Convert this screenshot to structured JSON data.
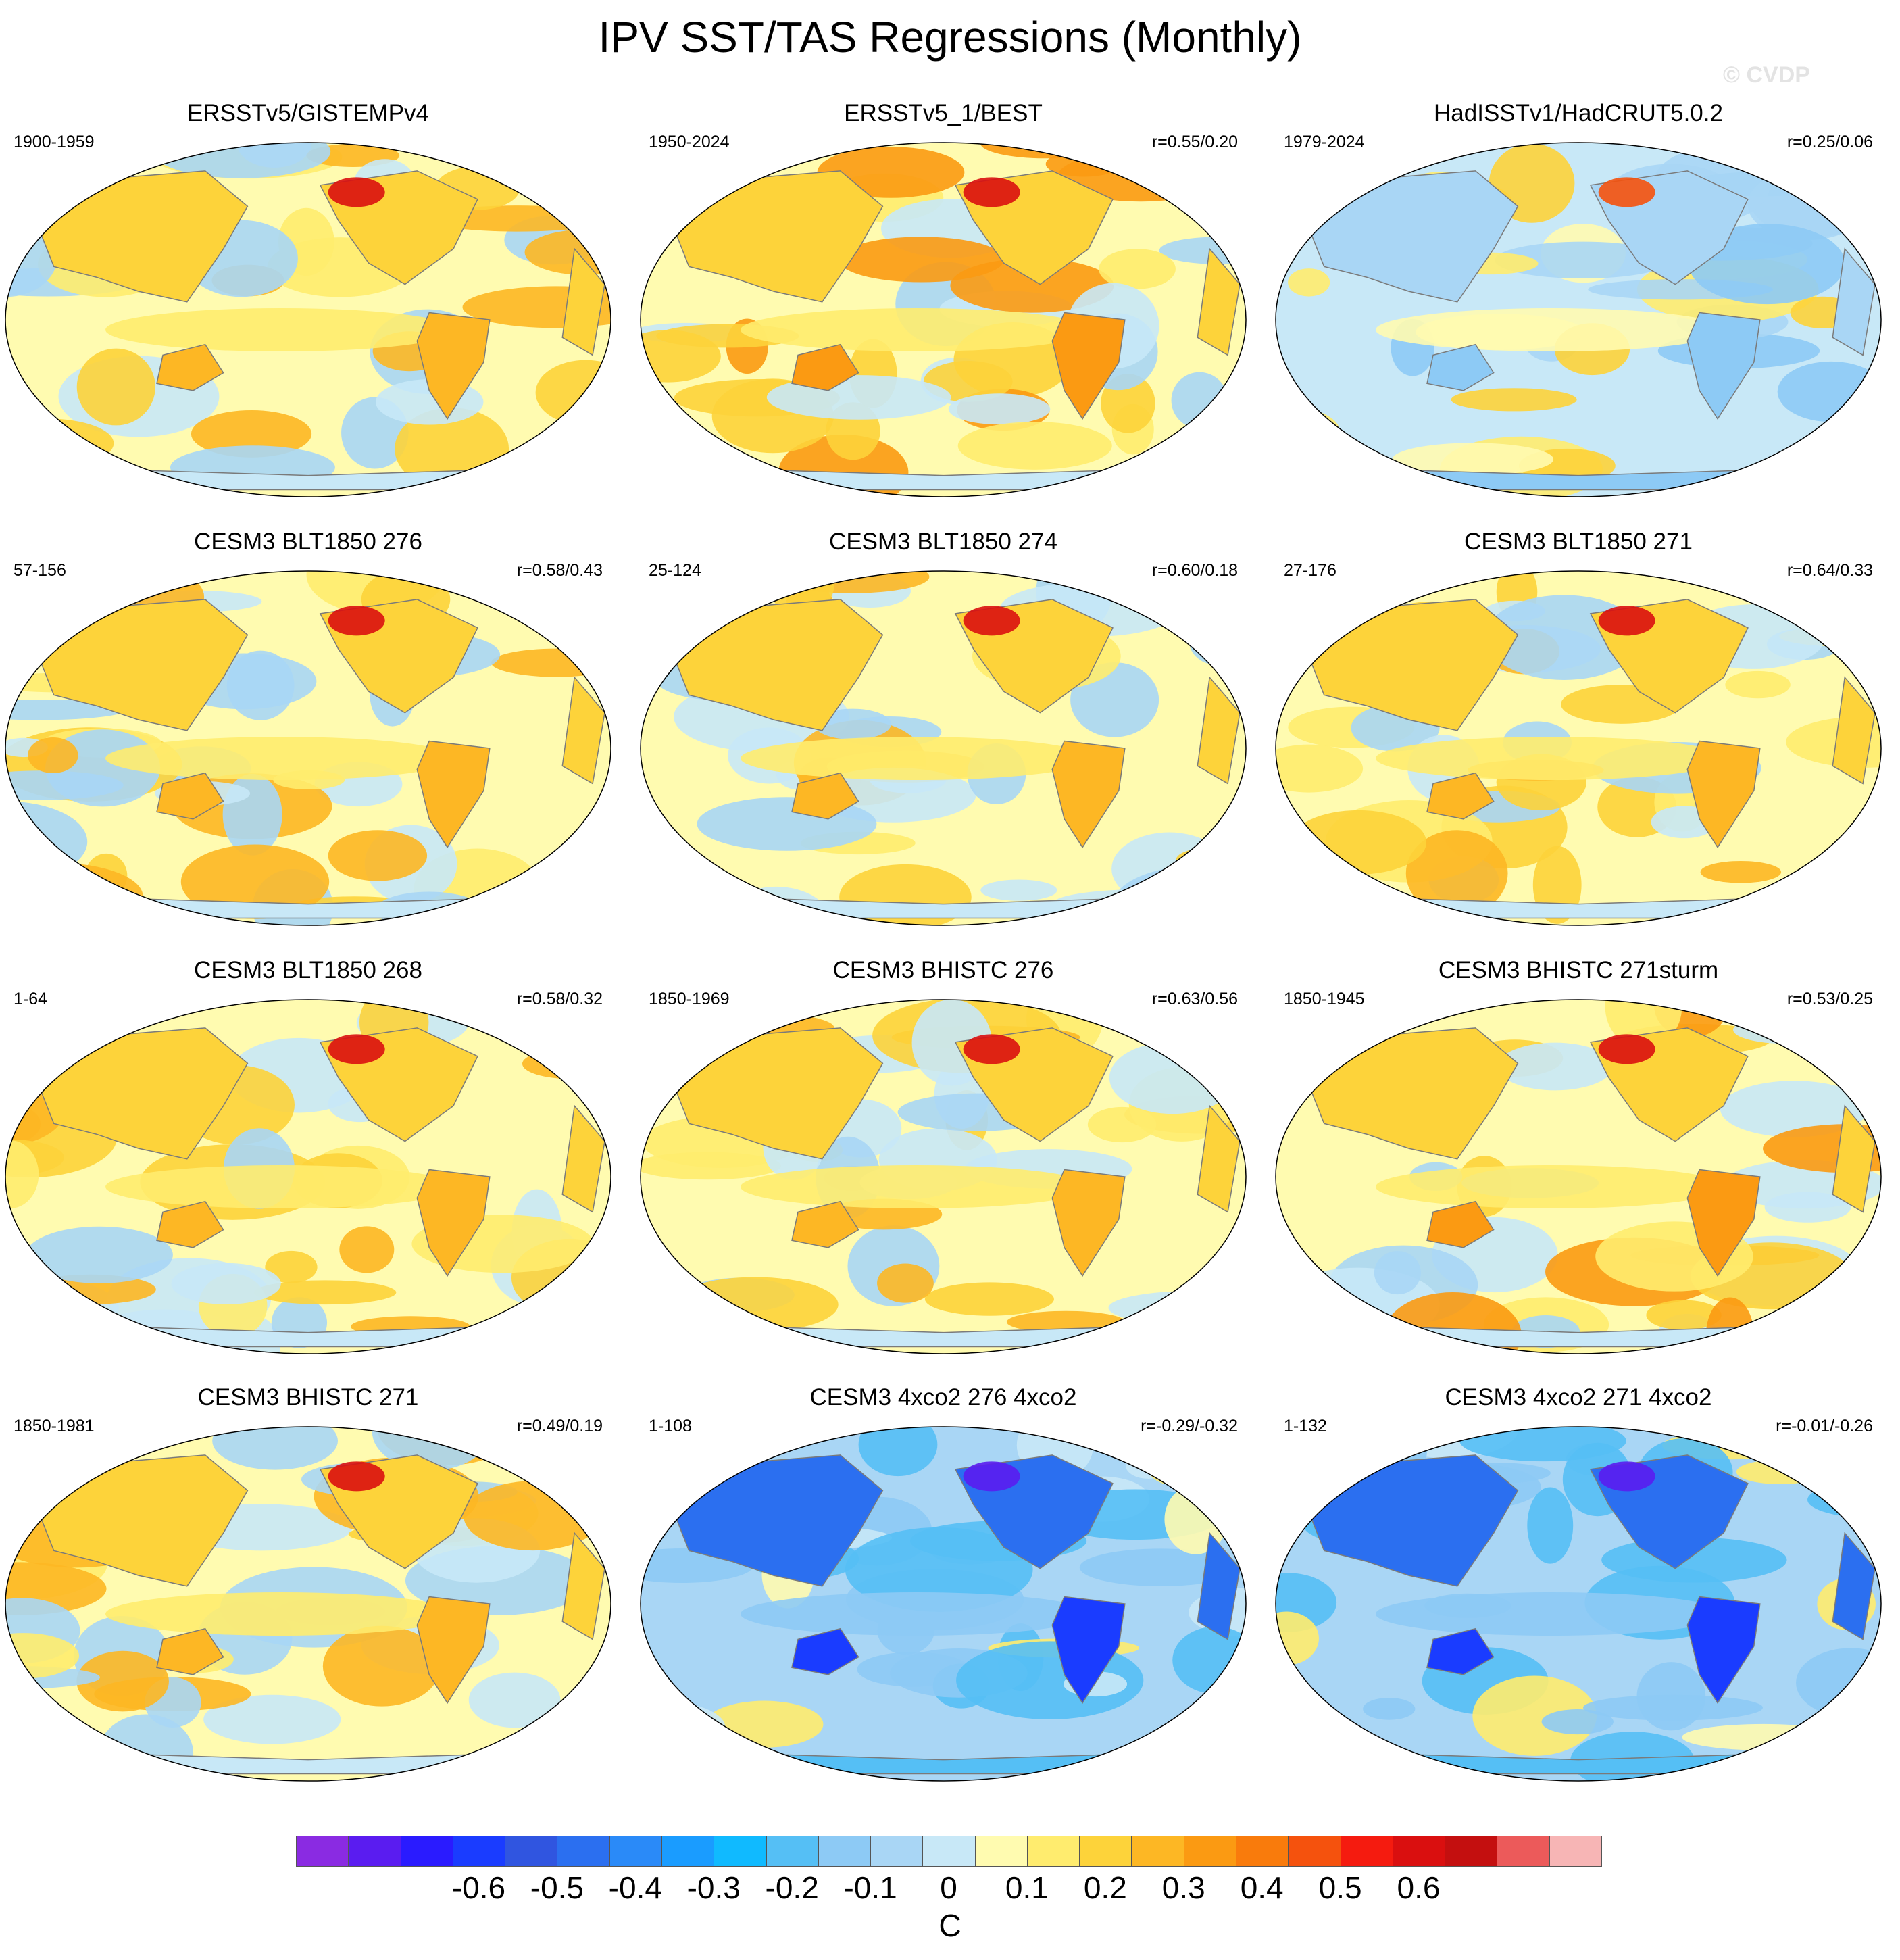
{
  "title": "IPV SST/TAS Regressions (Monthly)",
  "watermark": "© CVDP",
  "panels": [
    {
      "title": "ERSSTv5/GISTEMPv4",
      "period": "1900-1959",
      "corr": "",
      "palette": "warm"
    },
    {
      "title": "ERSSTv5_1/BEST",
      "period": "1950-2024",
      "corr": "r=0.55/0.20",
      "palette": "mixed"
    },
    {
      "title": "HadISSTv1/HadCRUT5.0.2",
      "period": "1979-2024",
      "corr": "r=0.25/0.06",
      "palette": "cool-light"
    },
    {
      "title": "CESM3 BLT1850 276",
      "period": "57-156",
      "corr": "r=0.58/0.43",
      "palette": "warm"
    },
    {
      "title": "CESM3 BLT1850 274",
      "period": "25-124",
      "corr": "r=0.60/0.18",
      "palette": "warm"
    },
    {
      "title": "CESM3 BLT1850 271",
      "period": "27-176",
      "corr": "r=0.64/0.33",
      "palette": "warm"
    },
    {
      "title": "CESM3 BLT1850 268",
      "period": "1-64",
      "corr": "r=0.58/0.32",
      "palette": "warm"
    },
    {
      "title": "CESM3 BHISTC 276",
      "period": "1850-1969",
      "corr": "r=0.63/0.56",
      "palette": "warm"
    },
    {
      "title": "CESM3 BHISTC 271sturm",
      "period": "1850-1945",
      "corr": "r=0.53/0.25",
      "palette": "mixed"
    },
    {
      "title": "CESM3 BHISTC 271",
      "period": "1850-1981",
      "corr": "r=0.49/0.19",
      "palette": "warm"
    },
    {
      "title": "CESM3 4xco2 276 4xco2",
      "period": "1-108",
      "corr": "r=-0.29/-0.32",
      "palette": "cold"
    },
    {
      "title": "CESM3 4xco2 271 4xco2",
      "period": "1-132",
      "corr": "r=-0.01/-0.26",
      "palette": "cold"
    }
  ],
  "colorbar": {
    "units": "C",
    "labels": [
      "-0.6",
      "-0.5",
      "-0.4",
      "-0.3",
      "-0.2",
      "-0.1",
      "0",
      "0.1",
      "0.2",
      "0.3",
      "0.4",
      "0.5",
      "0.6"
    ],
    "colors": [
      "#8a2be2",
      "#5a1cf0",
      "#2a1bff",
      "#1a3cff",
      "#3055e0",
      "#2b6ff0",
      "#2a8af8",
      "#1a9cff",
      "#10baff",
      "#55bff5",
      "#8dcaf5",
      "#a9d6f5",
      "#c8e8f7",
      "#fffbb0",
      "#ffec6e",
      "#fdd33a",
      "#fdb724",
      "#fb9a12",
      "#f97b0c",
      "#f5520d",
      "#f51b0f",
      "#da0f0f",
      "#c40f0f",
      "#ec5a5a",
      "#f7b5b5"
    ]
  }
}
